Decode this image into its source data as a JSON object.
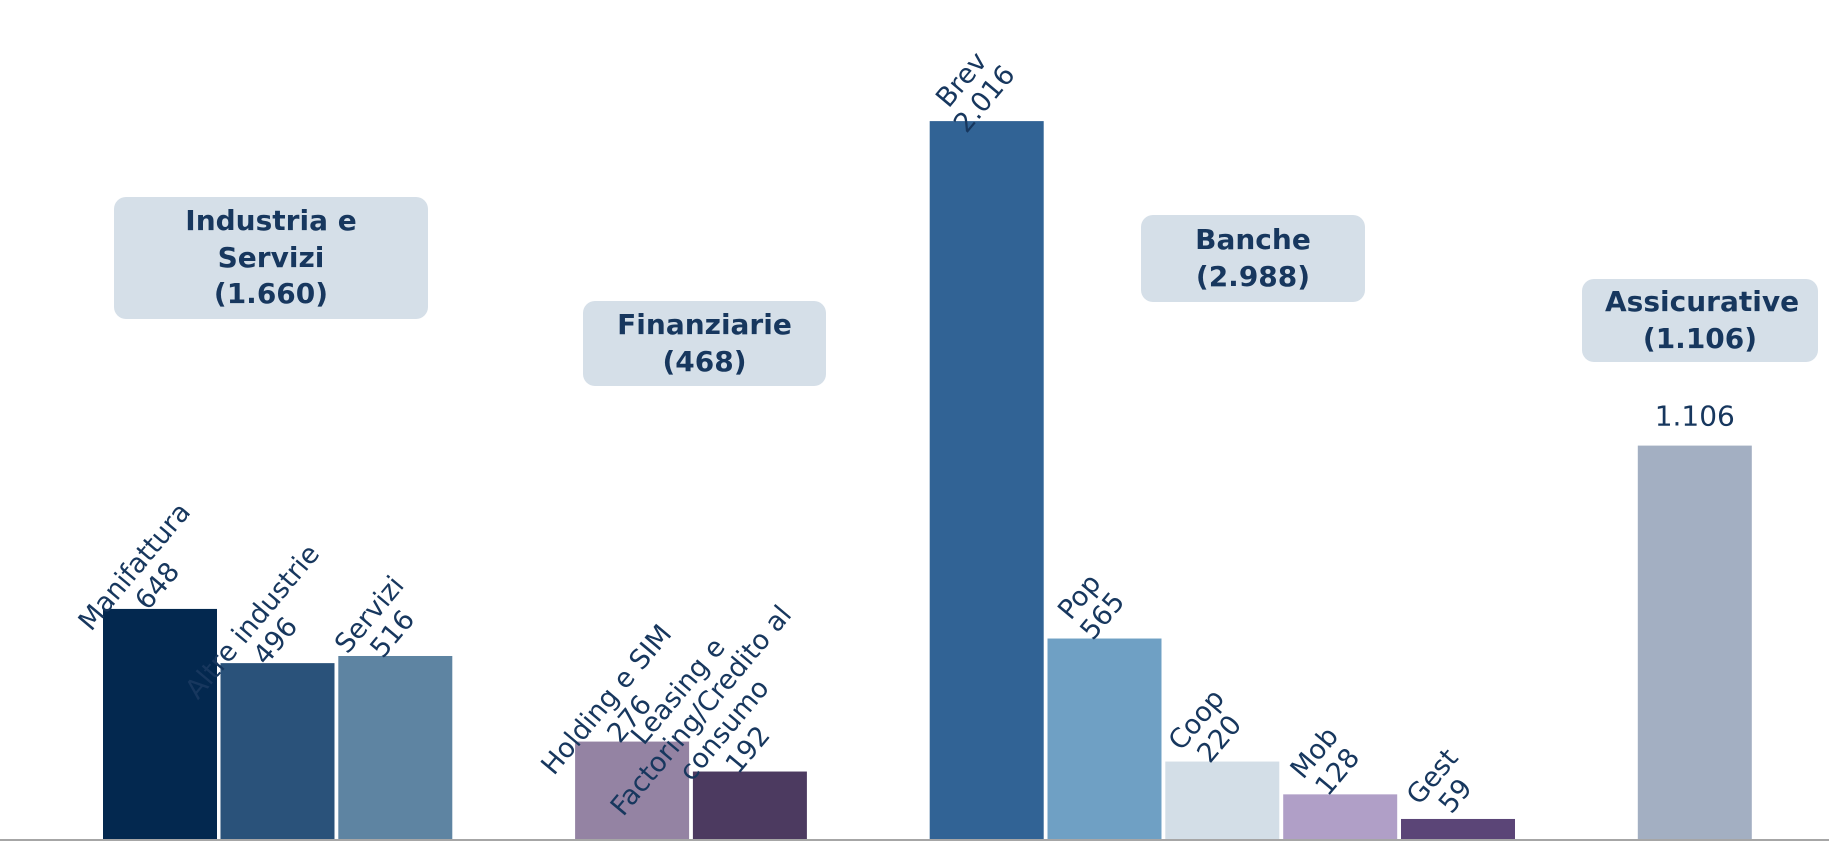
{
  "chart_data": {
    "type": "bar",
    "categories": [
      "Manifattura",
      "Altre industrie",
      "Servizi",
      "Holding e SIM",
      "Leasing e Factoring/Credito al consumo",
      "Brev",
      "Pop",
      "Coop",
      "Mob",
      "Gest",
      null
    ],
    "values": [
      648,
      496,
      516,
      276,
      192,
      2016,
      565,
      220,
      128,
      59,
      1106
    ],
    "value_labels": [
      "648",
      "496",
      "516",
      "276",
      "192",
      "2.016",
      "565",
      "220",
      "128",
      "59",
      "1.106"
    ],
    "colors": [
      "#03284f",
      "#2a527a",
      "#5e84a2",
      "#9483a3",
      "#4c3a60",
      "#316395",
      "#6fa0c4",
      "#d3dee7",
      "#b09fc7",
      "#5b4577",
      "#a3afc2"
    ],
    "ylim": [
      0,
      2350
    ],
    "annotations": [
      {
        "text": "Industria e Servizi",
        "total": "(1.660)"
      },
      {
        "text": "Finanziarie",
        "total": "(468)"
      },
      {
        "text": "Banche",
        "total": "(2.988)"
      },
      {
        "text": "Assicurative",
        "total": "(1.106)"
      }
    ]
  }
}
